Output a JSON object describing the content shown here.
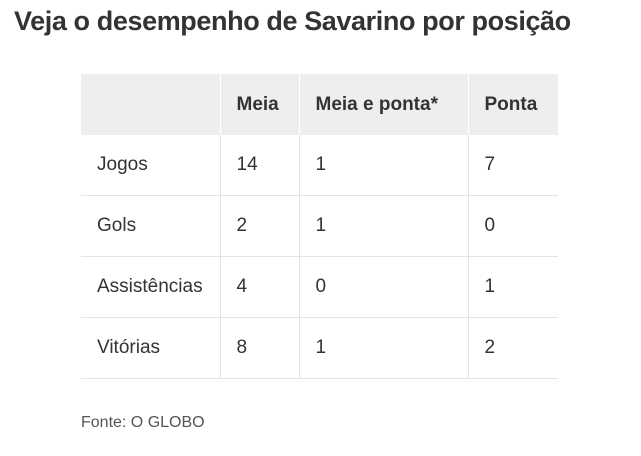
{
  "title": "Veja o desempenho de Savarino por posição",
  "table": {
    "headers": [
      "",
      "Meia",
      "Meia e ponta*",
      "Ponta"
    ],
    "rows": [
      [
        "Jogos",
        "14",
        "1",
        "7"
      ],
      [
        "Gols",
        "2",
        "1",
        "0"
      ],
      [
        "Assistências",
        "4",
        "0",
        "1"
      ],
      [
        "Vitórias",
        "8",
        "1",
        "2"
      ]
    ]
  },
  "source": "Fonte: O GLOBO"
}
